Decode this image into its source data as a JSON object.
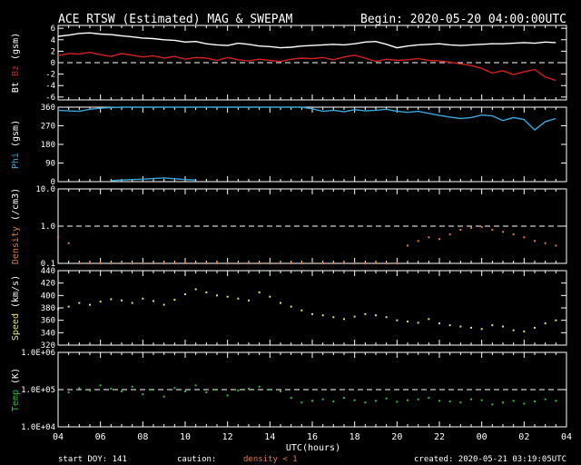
{
  "header": {
    "title": "ACE RTSW (Estimated) MAG & SWEPAM",
    "begin": "Begin: 2020-05-20 04:00:00UTC"
  },
  "footer": {
    "start_doy": "start DOY: 141",
    "caution": "caution:",
    "density_note": "density < 1",
    "created": "created: 2020-05-21 03:19:05UTC"
  },
  "colors": {
    "background": "#000000",
    "axes": "#ffffff",
    "bt": "#ffffff",
    "bz": "#d42020",
    "phi": "#3aa6d8",
    "density": "#e07a3a",
    "speed": "#e6e070",
    "temp": "#2ec22e"
  },
  "chart_data": {
    "type": "scatter",
    "x_axis": {
      "label": "UTC(hours)",
      "range_hours_from_begin": [
        0,
        24
      ],
      "tick_labels": [
        "04",
        "06",
        "08",
        "10",
        "12",
        "14",
        "16",
        "18",
        "20",
        "22",
        "00",
        "02",
        "04"
      ],
      "minor_ticks_per_major": 4
    },
    "panels": [
      {
        "id": "mag",
        "ylabel_parts": [
          "Bt",
          "Bz",
          "(gsm)"
        ],
        "ylim": [
          -6.5,
          6.5
        ],
        "yticks": [
          6,
          4,
          2,
          0,
          -2,
          -4,
          -6
        ],
        "ytick_labels": [
          "6",
          "4",
          "2",
          "0",
          "-2",
          "-4",
          "-6"
        ],
        "dashed_reference": 0,
        "series": [
          {
            "name": "Bt",
            "style": "line",
            "color_key": "bt",
            "x": [
              0,
              0.5,
              1,
              1.5,
              2,
              2.5,
              3,
              3.5,
              4,
              4.5,
              5,
              5.5,
              6,
              6.5,
              7,
              7.5,
              8,
              8.5,
              9,
              9.5,
              10,
              10.5,
              11,
              11.5,
              12,
              12.5,
              13,
              13.5,
              14,
              14.5,
              15,
              15.5,
              16,
              16.5,
              17,
              17.5,
              18,
              18.5,
              19,
              19.5,
              20,
              20.5,
              21,
              21.5,
              22,
              22.5,
              23,
              23.5
            ],
            "y": [
              4.6,
              4.8,
              5.1,
              5.2,
              5.0,
              4.9,
              4.7,
              4.5,
              4.3,
              4.2,
              4.0,
              3.9,
              3.6,
              3.7,
              3.3,
              3.1,
              3.0,
              3.4,
              3.2,
              2.9,
              2.8,
              2.6,
              2.7,
              2.9,
              3.0,
              3.1,
              3.2,
              3.1,
              3.3,
              3.6,
              3.7,
              3.2,
              2.6,
              2.9,
              3.1,
              3.2,
              3.3,
              3.1,
              3.0,
              3.1,
              3.2,
              3.3,
              3.3,
              3.4,
              3.5,
              3.4,
              3.6,
              3.5
            ]
          },
          {
            "name": "Bz",
            "style": "line",
            "color_key": "bz",
            "x": [
              0,
              0.5,
              1,
              1.5,
              2,
              2.5,
              3,
              3.5,
              4,
              4.5,
              5,
              5.5,
              6,
              6.5,
              7,
              7.5,
              8,
              8.5,
              9,
              9.5,
              10,
              10.5,
              11,
              11.5,
              12,
              12.5,
              13,
              13.5,
              14,
              14.5,
              15,
              15.5,
              16,
              16.5,
              17,
              17.5,
              18,
              18.5,
              19,
              19.5,
              20,
              20.5,
              21,
              21.5,
              22,
              22.5,
              23,
              23.5
            ],
            "y": [
              1.2,
              1.6,
              1.5,
              1.8,
              1.4,
              1.1,
              1.6,
              1.3,
              1.0,
              1.2,
              0.8,
              1.1,
              0.6,
              0.9,
              0.8,
              0.4,
              0.9,
              0.5,
              0.3,
              0.6,
              0.4,
              0.2,
              0.6,
              0.8,
              0.7,
              0.9,
              0.5,
              1.0,
              1.3,
              0.8,
              0.2,
              0.6,
              0.4,
              0.5,
              0.7,
              0.4,
              0.3,
              0.1,
              -0.2,
              -0.5,
              -1.0,
              -1.8,
              -1.4,
              -2.1,
              -1.6,
              -1.2,
              -2.5,
              -3.1
            ]
          }
        ]
      },
      {
        "id": "phi",
        "ylabel_parts": [
          "Phi",
          "(gsm)"
        ],
        "ylim": [
          0,
          360
        ],
        "yticks": [
          360,
          270,
          180,
          90,
          0
        ],
        "ytick_labels": [
          "360",
          "270",
          "180",
          "90",
          "0"
        ],
        "series": [
          {
            "name": "Phi",
            "style": "line",
            "color_key": "phi",
            "x": [
              0,
              0.5,
              1,
              1.5,
              2,
              2.5,
              3,
              3.5,
              4,
              4.5,
              5,
              5.5,
              6,
              6.5,
              7,
              7.5,
              8,
              8.5,
              9,
              9.5,
              10,
              10.5,
              11,
              11.5,
              12,
              12.5,
              13,
              13.5,
              14,
              14.5,
              15,
              15.5,
              16,
              16.5,
              17,
              17.5,
              18,
              18.5,
              19,
              19.5,
              20,
              20.5,
              21,
              21.5,
              22,
              22.5,
              23,
              23.5
            ],
            "y": [
              345,
              342,
              340,
              350,
              355,
              358,
              360,
              360,
              360,
              360,
              360,
              360,
              360,
              360,
              360,
              360,
              360,
              360,
              360,
              360,
              360,
              360,
              360,
              360,
              352,
              340,
              345,
              338,
              348,
              342,
              345,
              350,
              340,
              335,
              340,
              330,
              320,
              312,
              305,
              310,
              322,
              318,
              295,
              310,
              300,
              250,
              290,
              305
            ]
          },
          {
            "name": "Phi segment",
            "style": "line",
            "color_key": "phi",
            "x": [
              2.5,
              3,
              3.5,
              4,
              4.5,
              5,
              5.5,
              6,
              6.5
            ],
            "y": [
              5,
              8,
              10,
              12,
              15,
              18,
              14,
              10,
              8
            ]
          }
        ]
      },
      {
        "id": "density",
        "ylabel_parts": [
          "Density",
          "(/cm3)"
        ],
        "ylim_log10": [
          -1,
          1
        ],
        "yticks": [
          10,
          1,
          0.1
        ],
        "ytick_labels": [
          "10.0",
          "1.0",
          "0.1"
        ],
        "dashed_reference": 1,
        "series": [
          {
            "name": "Density",
            "style": "points",
            "color_key": "density",
            "x": [
              0,
              0.5,
              1,
              1.5,
              2,
              2.5,
              3,
              3.5,
              4,
              4.5,
              5,
              5.5,
              6,
              6.5,
              7,
              7.5,
              8,
              8.5,
              9,
              9.5,
              10,
              10.5,
              11,
              11.5,
              12,
              12.5,
              13,
              13.5,
              14,
              14.5,
              15,
              15.5,
              16,
              16.5,
              17,
              17.5,
              18,
              18.5,
              19,
              19.5,
              20,
              20.5,
              21,
              21.5,
              22,
              22.5,
              23,
              23.5
            ],
            "y": [
              0.5,
              0.35,
              0.1,
              0.1,
              0.1,
              0.1,
              0.1,
              0.1,
              0.1,
              0.1,
              0.1,
              0.1,
              0.1,
              0.1,
              0.1,
              0.1,
              0.1,
              0.1,
              0.1,
              0.1,
              0.1,
              0.1,
              0.1,
              0.1,
              0.1,
              0.1,
              0.1,
              0.1,
              0.1,
              0.1,
              0.1,
              0.1,
              0.1,
              0.3,
              0.4,
              0.5,
              0.45,
              0.6,
              0.8,
              0.9,
              0.95,
              0.8,
              0.7,
              0.6,
              0.5,
              0.4,
              0.35,
              0.3
            ]
          }
        ]
      },
      {
        "id": "speed",
        "ylabel_parts": [
          "Speed",
          "(km/s)"
        ],
        "ylim": [
          320,
          440
        ],
        "yticks": [
          440,
          420,
          400,
          380,
          360,
          340,
          320
        ],
        "ytick_labels": [
          "440",
          "420",
          "400",
          "380",
          "360",
          "340",
          "320"
        ],
        "series": [
          {
            "name": "Speed",
            "style": "points",
            "color_key": "speed",
            "x": [
              0,
              0.5,
              1,
              1.5,
              2,
              2.5,
              3,
              3.5,
              4,
              4.5,
              5,
              5.5,
              6,
              6.5,
              7,
              7.5,
              8,
              8.5,
              9,
              9.5,
              10,
              10.5,
              11,
              11.5,
              12,
              12.5,
              13,
              13.5,
              14,
              14.5,
              15,
              15.5,
              16,
              16.5,
              17,
              17.5,
              18,
              18.5,
              19,
              19.5,
              20,
              20.5,
              21,
              21.5,
              22,
              22.5,
              23,
              23.5
            ],
            "y": [
              378,
              382,
              388,
              385,
              390,
              394,
              392,
              388,
              395,
              391,
              385,
              393,
              402,
              410,
              405,
              400,
              398,
              395,
              392,
              405,
              398,
              388,
              382,
              376,
              370,
              368,
              365,
              362,
              366,
              370,
              368,
              365,
              360,
              358,
              356,
              362,
              355,
              352,
              350,
              348,
              346,
              352,
              350,
              344,
              342,
              348,
              355,
              360
            ]
          }
        ]
      },
      {
        "id": "temp",
        "ylabel_parts": [
          "Temp",
          "(K)"
        ],
        "ylim_log10": [
          4,
          6
        ],
        "yticks": [
          1000000,
          100000,
          10000
        ],
        "ytick_labels": [
          "1.0E+06",
          "1.0E+05",
          "1.0E+04"
        ],
        "dashed_reference": 100000,
        "series": [
          {
            "name": "Temp",
            "style": "points",
            "color_key": "temp",
            "x": [
              0,
              0.5,
              1,
              1.5,
              2,
              2.5,
              3,
              3.5,
              4,
              4.5,
              5,
              5.5,
              6,
              6.5,
              7,
              7.5,
              8,
              8.5,
              9,
              9.5,
              10,
              10.5,
              11,
              11.5,
              12,
              12.5,
              13,
              13.5,
              14,
              14.5,
              15,
              15.5,
              16,
              16.5,
              17,
              17.5,
              18,
              18.5,
              19,
              19.5,
              20,
              20.5,
              21,
              21.5,
              22,
              22.5,
              23,
              23.5
            ],
            "y": [
              70000,
              85000,
              110000,
              95000,
              130000,
              105000,
              90000,
              120000,
              75000,
              100000,
              65000,
              110000,
              90000,
              130000,
              85000,
              100000,
              70000,
              95000,
              105000,
              120000,
              100000,
              90000,
              60000,
              45000,
              50000,
              55000,
              48000,
              60000,
              52000,
              45000,
              50000,
              58000,
              47000,
              52000,
              55000,
              60000,
              50000,
              48000,
              45000,
              55000,
              52000,
              40000,
              45000,
              50000,
              42000,
              48000,
              55000,
              50000
            ]
          }
        ]
      }
    ]
  }
}
